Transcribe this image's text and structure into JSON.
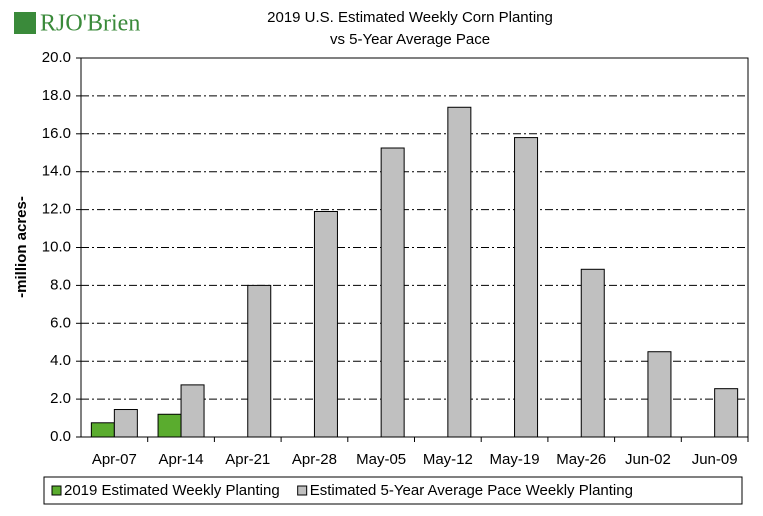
{
  "chart_data": {
    "type": "bar",
    "logo": "RJO'Brien",
    "title": "2019 U.S. Estimated Weekly Corn Planting",
    "subtitle": "vs 5-Year Average Pace",
    "y_label": "-million acres-",
    "categories": [
      "Apr-07",
      "Apr-14",
      "Apr-21",
      "Apr-28",
      "May-05",
      "May-12",
      "May-19",
      "May-26",
      "Jun-02",
      "Jun-09"
    ],
    "series": [
      {
        "name": "2019 Estimated Weekly Planting",
        "color": "#5aac2e",
        "values": [
          0.75,
          1.2,
          null,
          null,
          null,
          null,
          null,
          null,
          null,
          null
        ]
      },
      {
        "name": "Estimated 5-Year Average Pace Weekly Planting",
        "color": "#c0c0c0",
        "values": [
          1.45,
          2.75,
          8.0,
          11.9,
          15.25,
          17.4,
          15.8,
          8.85,
          4.5,
          2.55
        ]
      }
    ],
    "ylim": [
      0,
      20
    ],
    "yticks": [
      {
        "value": 0,
        "label": "0.0"
      },
      {
        "value": 2,
        "label": "2.0"
      },
      {
        "value": 4,
        "label": "4.0"
      },
      {
        "value": 6,
        "label": "6.0"
      },
      {
        "value": 8,
        "label": "8.0"
      },
      {
        "value": 10,
        "label": "10.0"
      },
      {
        "value": 12,
        "label": "12.0"
      },
      {
        "value": 14,
        "label": "14.0"
      },
      {
        "value": 16,
        "label": "16.0"
      },
      {
        "value": 18,
        "label": "18.0"
      },
      {
        "value": 20,
        "label": "20.0"
      }
    ],
    "grid": true,
    "legend": "bottom"
  }
}
